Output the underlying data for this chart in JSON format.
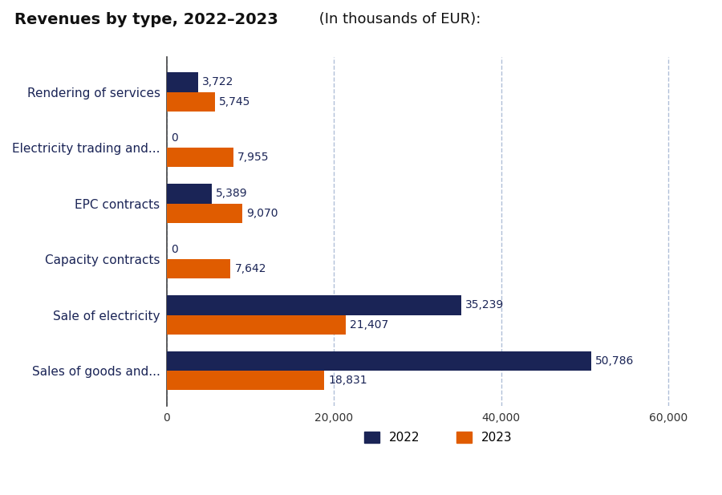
{
  "title_bold": "Revenues by type, 2022–2023",
  "title_regular": " (In thousands of EUR):",
  "categories": [
    "Sales of goods and...",
    "Sale of electricity",
    "Capacity contracts",
    "EPC contracts",
    "Electricity trading and...",
    "Rendering of services"
  ],
  "values_2022": [
    50786,
    35239,
    0,
    5389,
    0,
    3722
  ],
  "values_2023": [
    18831,
    21407,
    7642,
    9070,
    7955,
    5745
  ],
  "labels_2022": [
    "50,786",
    "35,239",
    "0",
    "5,389",
    "0",
    "3,722"
  ],
  "labels_2023": [
    "18,831",
    "21,407",
    "7,642",
    "9,070",
    "7,955",
    "5,745"
  ],
  "color_2022": "#1a2456",
  "color_2023": "#e05c00",
  "xlim": [
    0,
    65000
  ],
  "xticks": [
    0,
    20000,
    40000,
    60000
  ],
  "xticklabels": [
    "0",
    "20,000",
    "40,000",
    "60,000"
  ],
  "grid_color": "#b0bfd8",
  "bar_height": 0.35,
  "label_color_2022": "#1a2456",
  "label_color_2023": "#1a2456",
  "legend_2022": "2022",
  "legend_2023": "2023",
  "bg_color": "#ffffff",
  "label_fontsize": 10,
  "category_fontsize": 11,
  "title_fontsize_bold": 14,
  "title_fontsize_regular": 13
}
